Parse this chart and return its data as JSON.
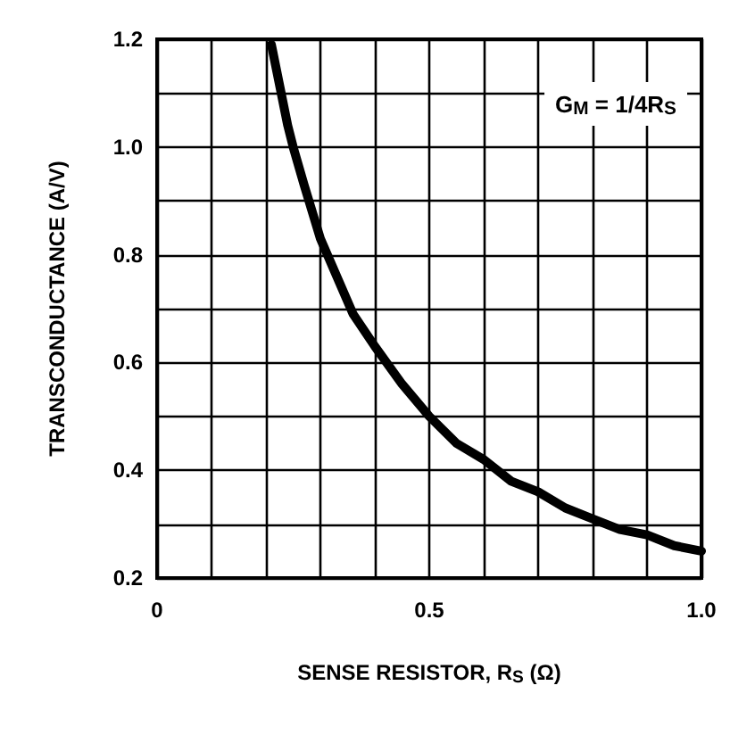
{
  "chart_data": {
    "type": "line",
    "xlabel": "SENSE RESISTOR, R$_{S}$ (Ω)",
    "ylabel": "TRANSCONDUCTANCE (A/V)",
    "annotations": [
      "G$_{M}$ = 1/4R$_{S}$"
    ],
    "x": [
      0.21,
      0.22,
      0.24,
      0.25,
      0.27,
      0.3,
      0.33,
      0.36,
      0.4,
      0.45,
      0.5,
      0.55,
      0.6,
      0.65,
      0.7,
      0.75,
      0.8,
      0.85,
      0.9,
      0.95,
      1.0
    ],
    "series": [
      {
        "color": "#000000",
        "values": [
          1.19,
          1.14,
          1.04,
          1.0,
          0.93,
          0.83,
          0.76,
          0.69,
          0.63,
          0.56,
          0.5,
          0.45,
          0.42,
          0.38,
          0.36,
          0.33,
          0.31,
          0.29,
          0.28,
          0.26,
          0.25
        ]
      }
    ],
    "xlim": [
      0,
      1.0
    ],
    "ylim": [
      0.2,
      1.2
    ],
    "xticks": [
      0,
      {
        "value": 0.1,
        "label": null
      },
      {
        "value": 0.2,
        "label": null
      },
      {
        "value": 0.3,
        "label": null
      },
      {
        "value": 0.4,
        "label": null
      },
      0.5,
      {
        "value": 0.6,
        "label": null
      },
      {
        "value": 0.7,
        "label": null
      },
      {
        "value": 0.8,
        "label": null
      },
      {
        "value": 0.9,
        "label": null
      },
      {
        "value": 1.0,
        "label": "1.0"
      }
    ],
    "yticks": [
      {
        "value": 0.2,
        "label": "0.2"
      },
      {
        "value": 0.3,
        "label": null
      },
      {
        "value": 0.4,
        "label": "0.4"
      },
      {
        "value": 0.5,
        "label": null
      },
      {
        "value": 0.6,
        "label": "0.6"
      },
      {
        "value": 0.7,
        "label": null
      },
      {
        "value": 0.8,
        "label": "0.8"
      },
      {
        "value": 0.9,
        "label": null
      },
      {
        "value": 1.0,
        "label": "1.0"
      },
      {
        "value": 1.1,
        "label": null
      },
      {
        "value": 1.2,
        "label": "1.2"
      }
    ],
    "grid": true,
    "marker": "none",
    "line_style": "solid"
  }
}
